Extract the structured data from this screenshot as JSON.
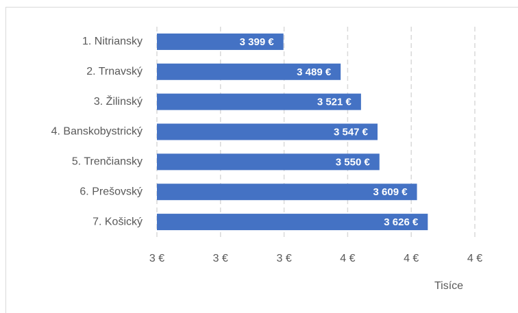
{
  "chart_data": {
    "type": "bar",
    "orientation": "horizontal",
    "categories": [
      "1. Nitriansky",
      "2. Trnavský",
      "3. Žilinský",
      "4. Banskobystrický",
      "5. Trenčiansky",
      "6. Prešovský",
      "7. Košický"
    ],
    "values": [
      3399,
      3489,
      3521,
      3547,
      3550,
      3609,
      3626
    ],
    "value_labels": [
      "3 399 €",
      "3 489 €",
      "3 521 €",
      "3 547 €",
      "3 550 €",
      "3 609 €",
      "3 626 €"
    ],
    "color": "#4472c4",
    "xlim": [
      3200,
      3700
    ],
    "xticks": [
      {
        "value": 3200,
        "label": "3 €"
      },
      {
        "value": 3300,
        "label": "3 €"
      },
      {
        "value": 3400,
        "label": "3 €"
      },
      {
        "value": 3500,
        "label": "4 €"
      },
      {
        "value": 3600,
        "label": "4 €"
      },
      {
        "value": 3700,
        "label": "4 €"
      }
    ],
    "x_unit_label": "Tisíce",
    "grid": true
  }
}
